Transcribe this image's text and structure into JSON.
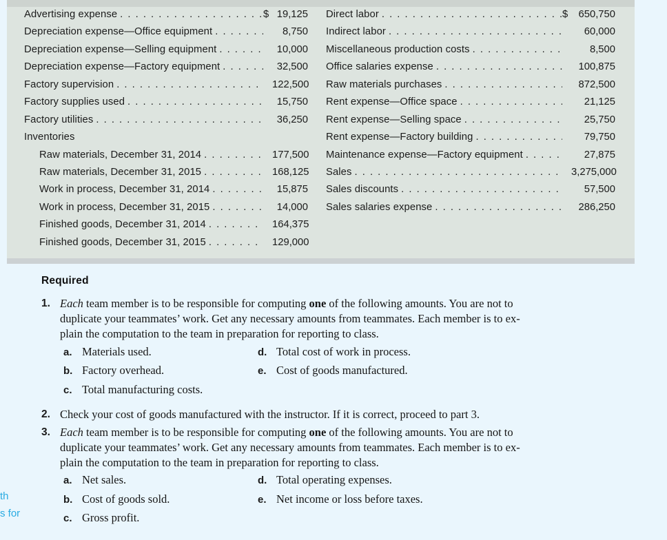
{
  "colors": {
    "page_bg": "#eaf6fd",
    "table_bg": "#dde4df",
    "strip_top": "#cdd3cf",
    "strip_bottom": "#ccd1d3",
    "ink": "#1b1b1b",
    "accent_blue": "#29abe2"
  },
  "table": {
    "left_rows": [
      {
        "label": "Advertising expense",
        "currency": "$",
        "amount": "19,125"
      },
      {
        "label": "Depreciation expense—Office equipment",
        "amount": "8,750"
      },
      {
        "label": "Depreciation expense—Selling equipment",
        "amount": "10,000"
      },
      {
        "label": "Depreciation expense—Factory equipment",
        "amount": "32,500"
      },
      {
        "label": "Factory supervision",
        "amount": "122,500"
      },
      {
        "label": "Factory supplies used",
        "amount": "15,750"
      },
      {
        "label": "Factory utilities",
        "amount": "36,250"
      },
      {
        "label": "Inventories",
        "amount": "",
        "dots": false
      },
      {
        "label": "Raw materials, December 31, 2014",
        "amount": "177,500",
        "indent": true
      },
      {
        "label": "Raw materials, December 31, 2015",
        "amount": "168,125",
        "indent": true
      },
      {
        "label": "Work in process, December 31, 2014",
        "amount": "15,875",
        "indent": true
      },
      {
        "label": "Work in process, December 31, 2015",
        "amount": "14,000",
        "indent": true
      },
      {
        "label": "Finished goods, December 31, 2014",
        "amount": "164,375",
        "indent": true
      },
      {
        "label": "Finished goods, December 31, 2015",
        "amount": "129,000",
        "indent": true
      }
    ],
    "right_rows": [
      {
        "label": "Direct labor",
        "currency": "$",
        "amount": "650,750"
      },
      {
        "label": "Indirect labor",
        "amount": "60,000"
      },
      {
        "label": "Miscellaneous production costs",
        "amount": "8,500"
      },
      {
        "label": "Office salaries expense",
        "amount": "100,875"
      },
      {
        "label": "Raw materials purchases",
        "amount": "872,500"
      },
      {
        "label": "Rent expense—Office space",
        "amount": "21,125"
      },
      {
        "label": "Rent expense—Selling space",
        "amount": "25,750"
      },
      {
        "label": "Rent expense—Factory building",
        "amount": "79,750"
      },
      {
        "label": "Maintenance expense—Factory equipment",
        "amount": "27,875"
      },
      {
        "label": "Sales",
        "amount": "3,275,000"
      },
      {
        "label": "Sales discounts",
        "amount": "57,500"
      },
      {
        "label": "Sales salaries expense",
        "amount": "286,250"
      }
    ]
  },
  "required": {
    "heading": "Required",
    "items": [
      {
        "number": "1.",
        "segments": [
          {
            "t": "Each",
            "i": true
          },
          {
            "t": " team member is to be responsible for computing "
          },
          {
            "t": "one",
            "b": true
          },
          {
            "t": " of the following amounts. You are not to"
          },
          {
            "br": true
          },
          {
            "t": "duplicate your teammates’ work. Get any necessary amounts from teammates. Each member is to ex-"
          },
          {
            "br": true
          },
          {
            "t": "plain the computation to the team in preparation for reporting to class."
          }
        ],
        "sub_cols": [
          [
            {
              "letter": "a.",
              "text": "Materials used."
            },
            {
              "letter": "b.",
              "text": "Factory overhead."
            },
            {
              "letter": "c.",
              "text": "Total manufacturing costs."
            }
          ],
          [
            {
              "letter": "d.",
              "text": "Total cost of work in process."
            },
            {
              "letter": "e.",
              "text": "Cost of goods manufactured."
            }
          ]
        ]
      },
      {
        "number": "2.",
        "segments": [
          {
            "t": "Check your cost of goods manufactured with the instructor. If it is correct, proceed to part 3."
          }
        ]
      },
      {
        "number": "3.",
        "segments": [
          {
            "t": "Each",
            "i": true
          },
          {
            "t": " team member is to be responsible for computing "
          },
          {
            "t": "one",
            "b": true
          },
          {
            "t": " of the following amounts. You are not to"
          },
          {
            "br": true
          },
          {
            "t": "duplicate your teammates’ work. Get any necessary amounts from teammates. Each member is to ex-"
          },
          {
            "br": true
          },
          {
            "t": "plain the computation to the team in preparation for reporting to class."
          }
        ],
        "sub_cols": [
          [
            {
              "letter": "a.",
              "text": "Net sales."
            },
            {
              "letter": "b.",
              "text": "Cost of goods sold."
            },
            {
              "letter": "c.",
              "text": "Gross profit."
            }
          ],
          [
            {
              "letter": "d.",
              "text": "Total operating expenses."
            },
            {
              "letter": "e.",
              "text": "Net income or loss before taxes."
            }
          ]
        ]
      }
    ]
  },
  "margin_note": {
    "lines": [
      "th",
      "s for"
    ]
  }
}
